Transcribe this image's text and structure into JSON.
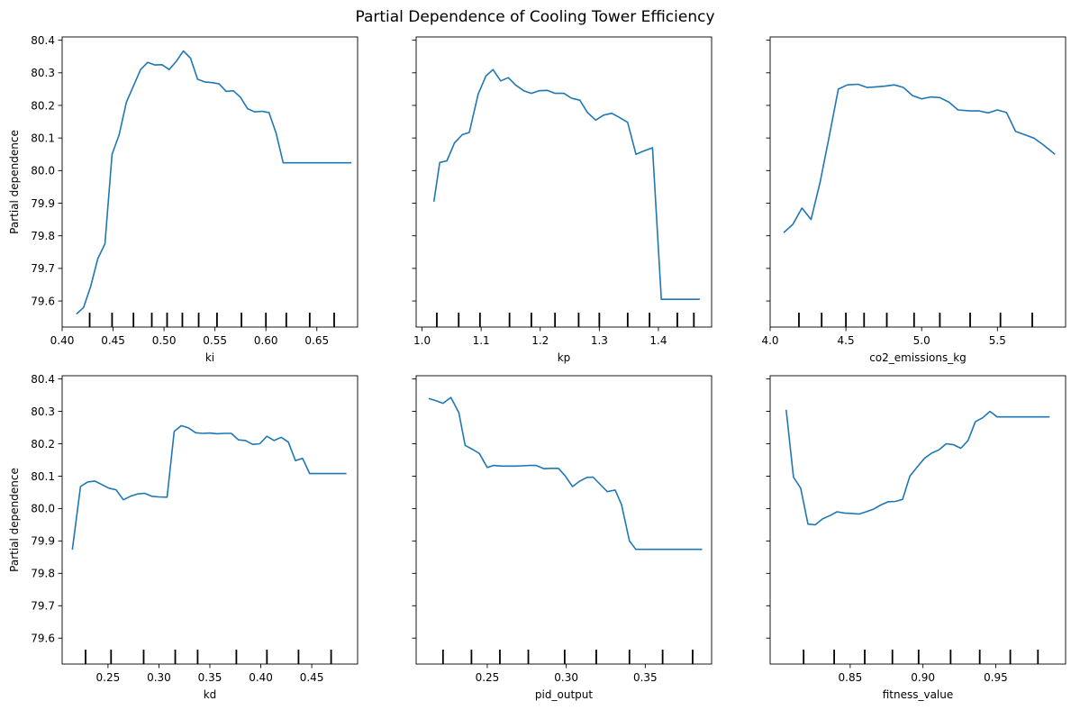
{
  "figure": {
    "title": "Partial Dependence of Cooling Tower Efficiency"
  },
  "chart_data": [
    {
      "type": "line",
      "xlabel": "ki",
      "ylabel": "Partial dependence",
      "xlim": [
        0.4,
        0.69
      ],
      "ylim": [
        79.52,
        80.41
      ],
      "xticks": [
        0.4,
        0.45,
        0.5,
        0.55,
        0.6,
        0.65
      ],
      "xtick_labels": [
        "0.40",
        "0.45",
        "0.50",
        "0.55",
        "0.60",
        "0.65"
      ],
      "yticks": [
        79.6,
        79.7,
        79.8,
        79.9,
        80.0,
        80.1,
        80.2,
        80.3,
        80.4
      ],
      "ytick_labels": [
        "79.6",
        "79.7",
        "79.8",
        "79.9",
        "80.0",
        "80.1",
        "80.2",
        "80.3",
        "80.4"
      ],
      "show_ytick_labels": true,
      "rug": [
        0.427,
        0.449,
        0.47,
        0.488,
        0.503,
        0.518,
        0.534,
        0.552,
        0.576,
        0.6,
        0.62,
        0.643,
        0.667
      ],
      "x": [
        0.414,
        0.421,
        0.428,
        0.435,
        0.442,
        0.449,
        0.456,
        0.463,
        0.47,
        0.477,
        0.484,
        0.491,
        0.498,
        0.505,
        0.512,
        0.519,
        0.526,
        0.533,
        0.54,
        0.547,
        0.554,
        0.561,
        0.568,
        0.575,
        0.582,
        0.589,
        0.596,
        0.603,
        0.61,
        0.617,
        0.624,
        0.631,
        0.638,
        0.645,
        0.652,
        0.659,
        0.666,
        0.673,
        0.684
      ],
      "y": [
        79.56,
        79.58,
        79.645,
        79.73,
        79.775,
        80.05,
        80.11,
        80.21,
        80.26,
        80.31,
        80.332,
        80.324,
        80.325,
        80.31,
        80.335,
        80.367,
        80.345,
        80.28,
        80.272,
        80.27,
        80.266,
        80.243,
        80.245,
        80.225,
        80.19,
        80.18,
        80.182,
        80.178,
        80.115,
        80.024,
        80.024,
        80.024,
        80.024,
        80.024,
        80.024,
        80.024,
        80.024,
        80.024,
        80.024
      ]
    },
    {
      "type": "line",
      "xlabel": "kp",
      "ylabel": "",
      "xlim": [
        0.99,
        1.49
      ],
      "ylim": [
        79.52,
        80.41
      ],
      "xticks": [
        1.0,
        1.1,
        1.2,
        1.3,
        1.4
      ],
      "xtick_labels": [
        "1.0",
        "1.1",
        "1.2",
        "1.3",
        "1.4"
      ],
      "yticks": [
        79.6,
        79.7,
        79.8,
        79.9,
        80.0,
        80.1,
        80.2,
        80.3,
        80.4
      ],
      "ytick_labels": [],
      "show_ytick_labels": false,
      "rug": [
        1.025,
        1.062,
        1.098,
        1.148,
        1.185,
        1.225,
        1.265,
        1.3,
        1.348,
        1.385,
        1.432,
        1.46
      ],
      "x": [
        1.02,
        1.03,
        1.042,
        1.055,
        1.068,
        1.08,
        1.095,
        1.108,
        1.12,
        1.133,
        1.146,
        1.158,
        1.172,
        1.185,
        1.198,
        1.212,
        1.225,
        1.24,
        1.253,
        1.267,
        1.28,
        1.294,
        1.307,
        1.321,
        1.335,
        1.348,
        1.362,
        1.375,
        1.39,
        1.405,
        1.418,
        1.432,
        1.453,
        1.47
      ],
      "y": [
        79.905,
        80.025,
        80.03,
        80.085,
        80.11,
        80.117,
        80.235,
        80.29,
        80.31,
        80.275,
        80.285,
        80.263,
        80.245,
        80.237,
        80.245,
        80.246,
        80.237,
        80.237,
        80.222,
        80.216,
        80.178,
        80.155,
        80.17,
        80.176,
        80.162,
        80.148,
        80.05,
        80.06,
        80.07,
        79.605,
        79.605,
        79.605,
        79.605,
        79.605
      ]
    },
    {
      "type": "line",
      "xlabel": "co2_emissions_kg",
      "ylabel": "",
      "xlim": [
        4.0,
        5.95
      ],
      "ylim": [
        79.52,
        80.41
      ],
      "xticks": [
        4.0,
        4.5,
        5.0,
        5.5
      ],
      "xtick_labels": [
        "4.0",
        "4.5",
        "5.0",
        "5.5"
      ],
      "yticks": [
        79.6,
        79.7,
        79.8,
        79.9,
        80.0,
        80.1,
        80.2,
        80.3,
        80.4
      ],
      "ytick_labels": [],
      "show_ytick_labels": false,
      "rug": [
        4.19,
        4.34,
        4.5,
        4.62,
        4.77,
        4.95,
        5.12,
        5.32,
        5.52,
        5.73
      ],
      "x": [
        4.09,
        4.15,
        4.21,
        4.27,
        4.33,
        4.39,
        4.45,
        4.51,
        4.58,
        4.64,
        4.7,
        4.76,
        4.82,
        4.88,
        4.94,
        5.0,
        5.06,
        5.12,
        5.18,
        5.24,
        5.32,
        5.38,
        5.44,
        5.5,
        5.56,
        5.62,
        5.68,
        5.74,
        5.8,
        5.88
      ],
      "y": [
        79.81,
        79.835,
        79.885,
        79.85,
        79.965,
        80.105,
        80.25,
        80.263,
        80.265,
        80.255,
        80.257,
        80.259,
        80.263,
        80.255,
        80.23,
        80.22,
        80.226,
        80.224,
        80.21,
        80.186,
        80.183,
        80.183,
        80.177,
        80.186,
        80.178,
        80.12,
        80.11,
        80.1,
        80.08,
        80.05
      ]
    },
    {
      "type": "line",
      "xlabel": "kd",
      "ylabel": "Partial dependence",
      "xlim": [
        0.205,
        0.495
      ],
      "ylim": [
        79.52,
        80.41
      ],
      "xticks": [
        0.25,
        0.3,
        0.35,
        0.4,
        0.45
      ],
      "xtick_labels": [
        "0.25",
        "0.30",
        "0.35",
        "0.40",
        "0.45"
      ],
      "yticks": [
        79.6,
        79.7,
        79.8,
        79.9,
        80.0,
        80.1,
        80.2,
        80.3,
        80.4
      ],
      "ytick_labels": [
        "79.6",
        "79.7",
        "79.8",
        "79.9",
        "80.0",
        "80.1",
        "80.2",
        "80.3",
        "80.4"
      ],
      "show_ytick_labels": true,
      "rug": [
        0.228,
        0.253,
        0.285,
        0.316,
        0.338,
        0.376,
        0.406,
        0.437,
        0.469
      ],
      "x": [
        0.215,
        0.223,
        0.23,
        0.237,
        0.244,
        0.251,
        0.258,
        0.265,
        0.272,
        0.279,
        0.286,
        0.293,
        0.3,
        0.308,
        0.315,
        0.322,
        0.329,
        0.336,
        0.343,
        0.35,
        0.357,
        0.364,
        0.371,
        0.378,
        0.385,
        0.392,
        0.399,
        0.406,
        0.413,
        0.42,
        0.427,
        0.434,
        0.441,
        0.448,
        0.455,
        0.462,
        0.469,
        0.476,
        0.484
      ],
      "y": [
        79.873,
        80.068,
        80.082,
        80.085,
        80.074,
        80.063,
        80.058,
        80.027,
        80.038,
        80.045,
        80.047,
        80.038,
        80.036,
        80.035,
        80.238,
        80.256,
        80.249,
        80.234,
        80.232,
        80.233,
        80.231,
        80.232,
        80.232,
        80.212,
        80.21,
        80.198,
        80.2,
        80.223,
        80.21,
        80.22,
        80.205,
        80.148,
        80.155,
        80.108,
        80.108,
        80.108,
        80.108,
        80.108,
        80.108
      ]
    },
    {
      "type": "line",
      "xlabel": "pid_output",
      "ylabel": "",
      "xlim": [
        0.205,
        0.392
      ],
      "ylim": [
        79.52,
        80.41
      ],
      "xticks": [
        0.25,
        0.3,
        0.35
      ],
      "xtick_labels": [
        "0.25",
        "0.30",
        "0.35"
      ],
      "yticks": [
        79.6,
        79.7,
        79.8,
        79.9,
        80.0,
        80.1,
        80.2,
        80.3,
        80.4
      ],
      "ytick_labels": [],
      "show_ytick_labels": false,
      "rug": [
        0.222,
        0.24,
        0.258,
        0.276,
        0.299,
        0.319,
        0.34,
        0.361,
        0.38
      ],
      "x": [
        0.213,
        0.218,
        0.222,
        0.227,
        0.232,
        0.236,
        0.241,
        0.245,
        0.25,
        0.254,
        0.259,
        0.263,
        0.268,
        0.272,
        0.277,
        0.281,
        0.286,
        0.29,
        0.295,
        0.299,
        0.304,
        0.308,
        0.313,
        0.317,
        0.322,
        0.326,
        0.331,
        0.335,
        0.34,
        0.344,
        0.349,
        0.353,
        0.358,
        0.362,
        0.367,
        0.371,
        0.376,
        0.38,
        0.386
      ],
      "y": [
        80.34,
        80.332,
        80.325,
        80.343,
        80.296,
        80.195,
        80.182,
        80.17,
        80.127,
        80.133,
        80.131,
        80.131,
        80.131,
        80.132,
        80.133,
        80.133,
        80.123,
        80.124,
        80.124,
        80.103,
        80.068,
        80.083,
        80.096,
        80.097,
        80.072,
        80.052,
        80.057,
        80.012,
        79.9,
        79.874,
        79.874,
        79.874,
        79.874,
        79.874,
        79.874,
        79.874,
        79.874,
        79.874,
        79.874
      ]
    },
    {
      "type": "line",
      "xlabel": "fitness_value",
      "ylabel": "",
      "xlim": [
        0.795,
        0.998
      ],
      "ylim": [
        79.52,
        80.41
      ],
      "xticks": [
        0.85,
        0.9,
        0.95
      ],
      "xtick_labels": [
        "0.85",
        "0.90",
        "0.95"
      ],
      "yticks": [
        79.6,
        79.7,
        79.8,
        79.9,
        80.0,
        80.1,
        80.2,
        80.3,
        80.4
      ],
      "ytick_labels": [],
      "show_ytick_labels": false,
      "rug": [
        0.818,
        0.839,
        0.86,
        0.879,
        0.897,
        0.919,
        0.939,
        0.96,
        0.979
      ],
      "x": [
        0.806,
        0.811,
        0.816,
        0.821,
        0.826,
        0.831,
        0.836,
        0.841,
        0.846,
        0.851,
        0.856,
        0.861,
        0.866,
        0.871,
        0.876,
        0.881,
        0.886,
        0.891,
        0.896,
        0.901,
        0.906,
        0.911,
        0.916,
        0.921,
        0.926,
        0.931,
        0.936,
        0.941,
        0.946,
        0.951,
        0.956,
        0.961,
        0.966,
        0.971,
        0.976,
        0.981,
        0.987
      ],
      "y": [
        80.305,
        80.097,
        80.063,
        79.952,
        79.95,
        79.968,
        79.978,
        79.99,
        79.986,
        79.985,
        79.983,
        79.99,
        79.998,
        80.011,
        80.021,
        80.022,
        80.028,
        80.1,
        80.128,
        80.155,
        80.171,
        80.181,
        80.2,
        80.197,
        80.186,
        80.21,
        80.268,
        80.28,
        80.3,
        80.283,
        80.283,
        80.283,
        80.283,
        80.283,
        80.283,
        80.283,
        80.283
      ]
    }
  ]
}
